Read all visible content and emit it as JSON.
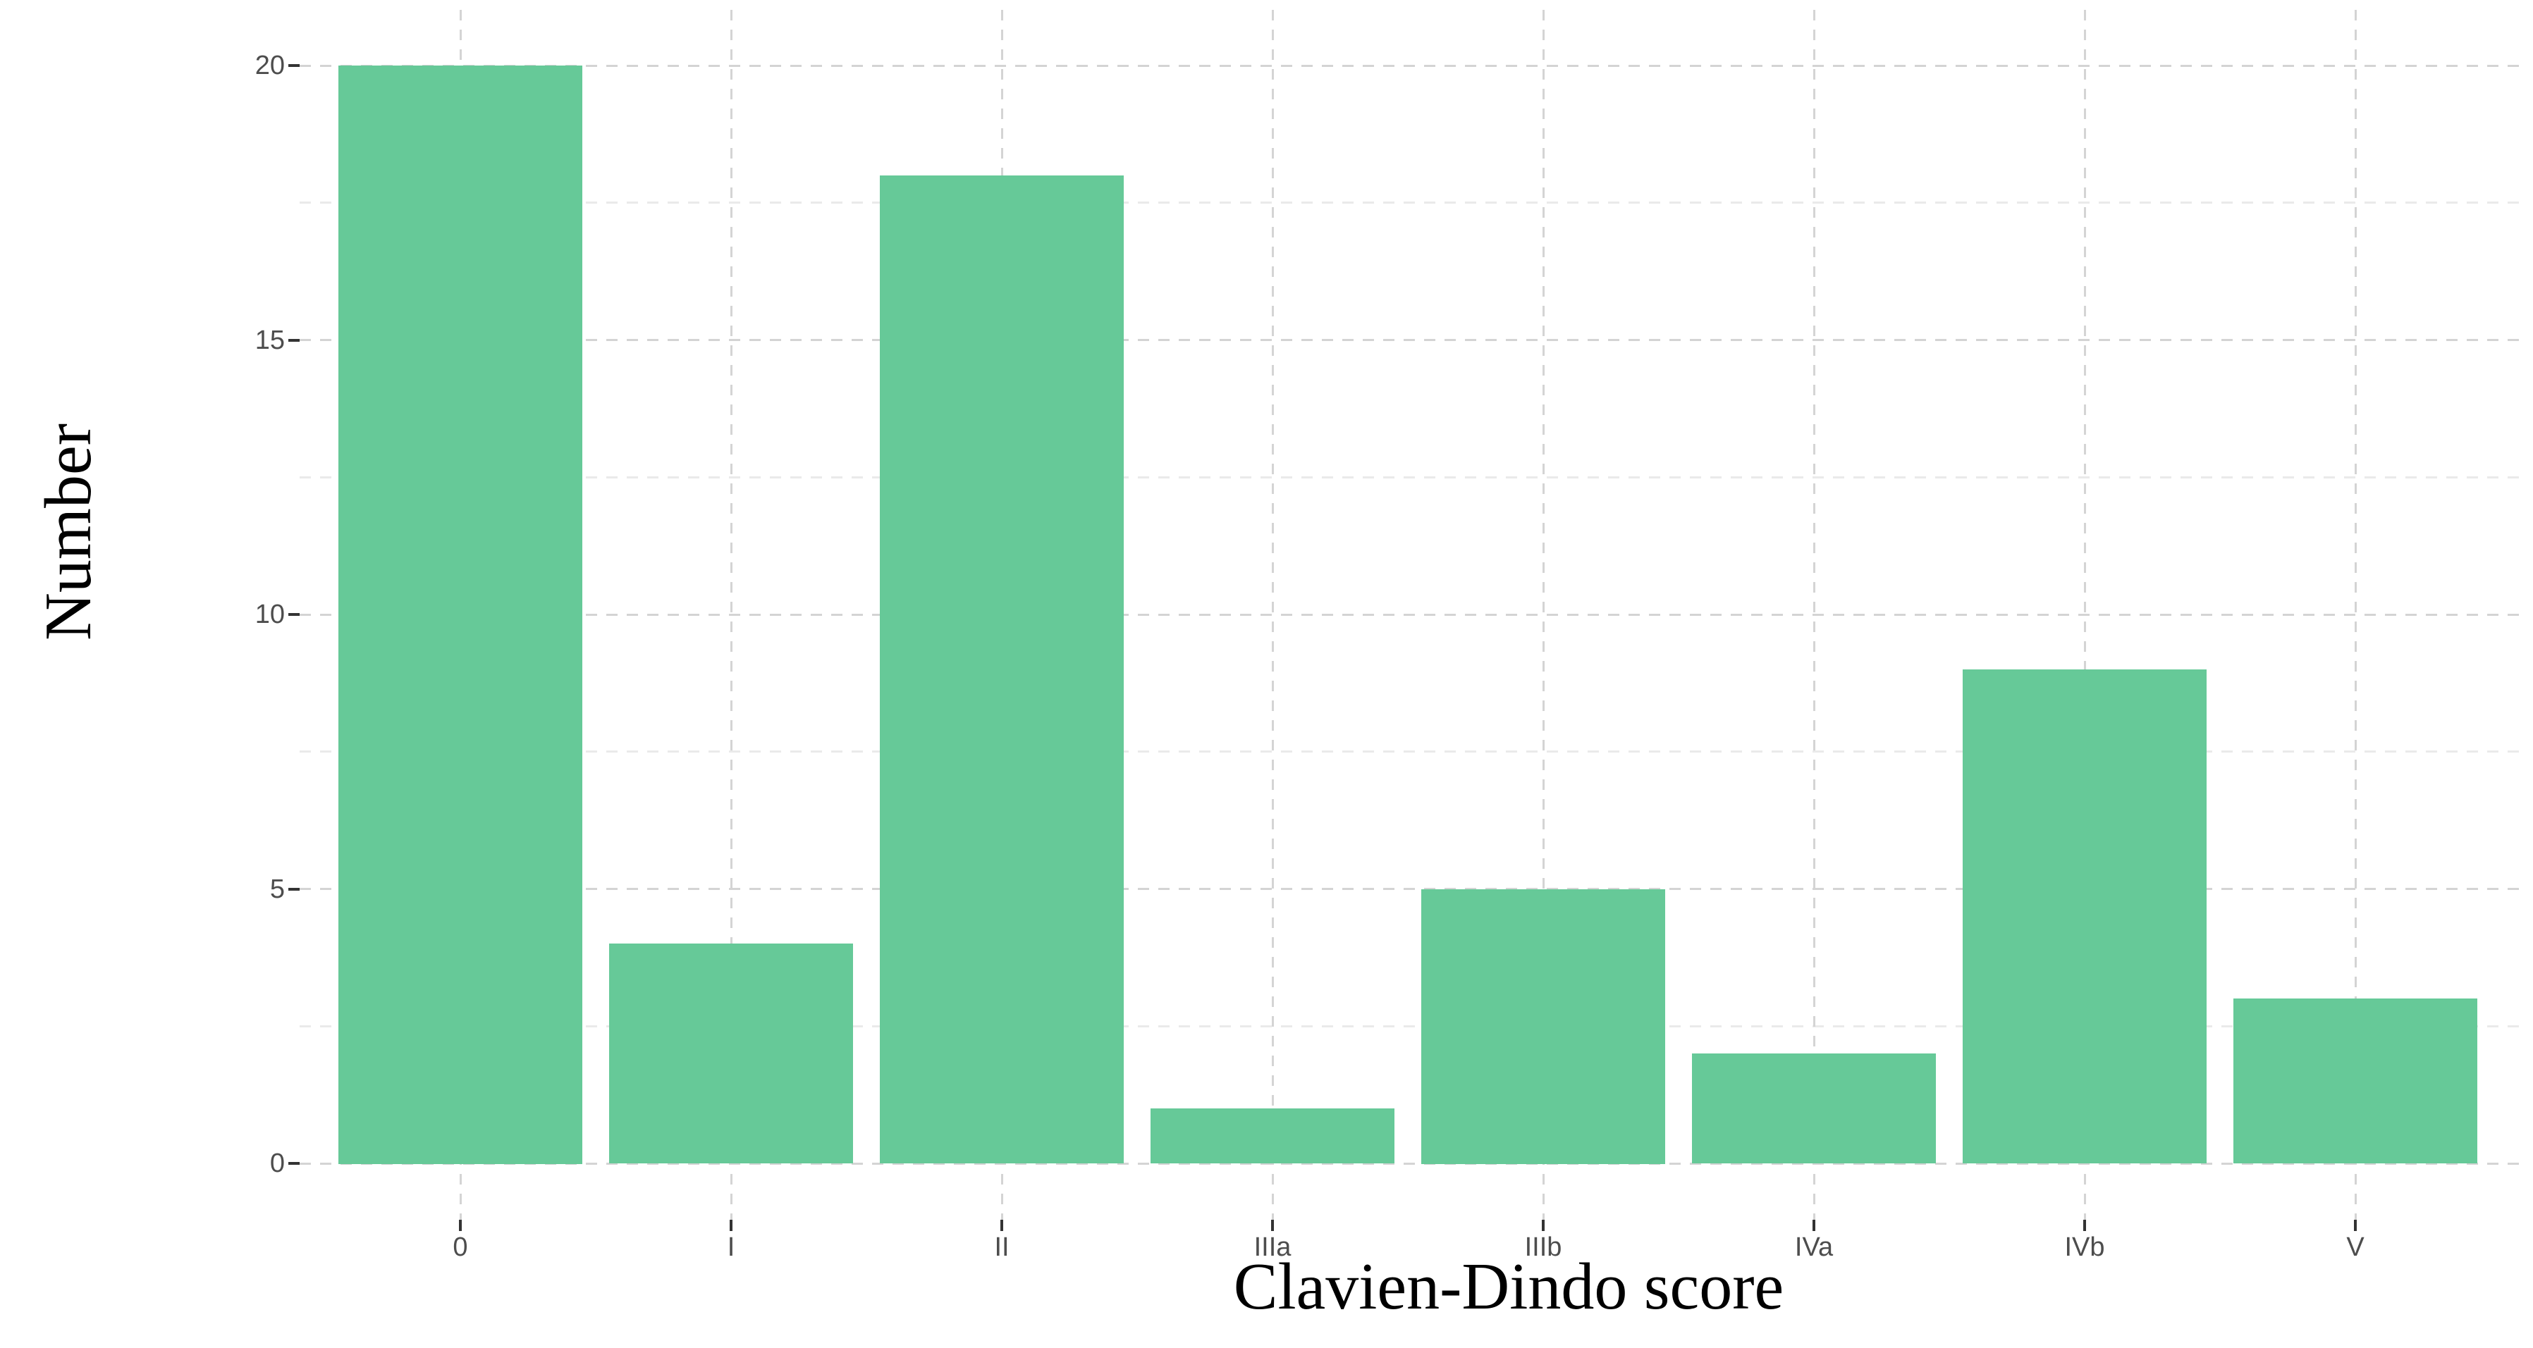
{
  "chart_data": {
    "type": "bar",
    "title": "",
    "xlabel": "Clavien-Dindo score",
    "ylabel": "Number",
    "categories": [
      "0",
      "I",
      "II",
      "IIIa",
      "IIIb",
      "IVa",
      "IVb",
      "V"
    ],
    "values": [
      20,
      4,
      18,
      1,
      5,
      2,
      9,
      3
    ],
    "ylim": [
      0,
      20
    ],
    "yticks": [
      0,
      5,
      10,
      15,
      20
    ],
    "yticks_minor": [
      2.5,
      7.5,
      12.5,
      17.5
    ],
    "legend": "none",
    "grid": {
      "style": "dashed",
      "horizontal": "major and minor",
      "vertical": "major only (one per category)"
    },
    "colors": {
      "bar": "#66c998",
      "grid_major": "#d4d4d4",
      "grid_minor": "#eaeaea",
      "tick": "#333333",
      "tick_label": "#4d4d4d",
      "axis_title": "#000000",
      "background": "#ffffff"
    }
  }
}
